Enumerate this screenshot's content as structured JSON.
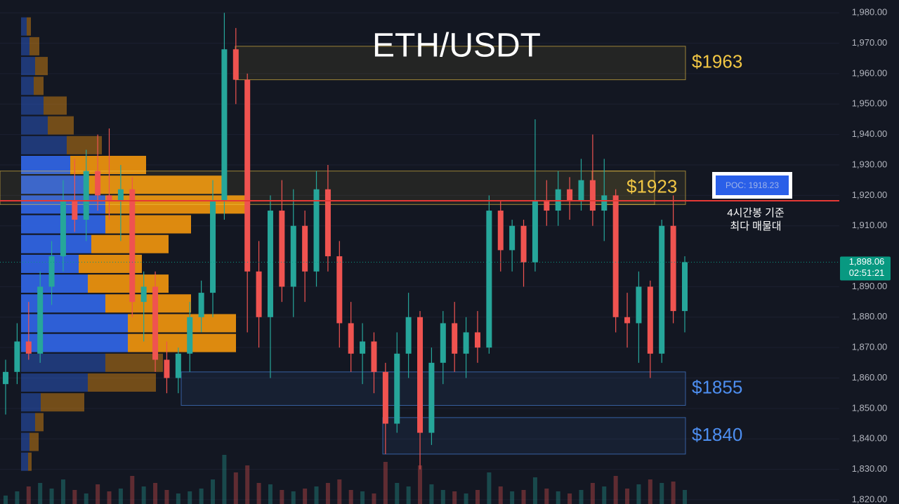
{
  "chart_data": {
    "type": "candlestick",
    "title": "ETH/USDT",
    "ylim": [
      1818.6,
      1984.2
    ],
    "yticks": [
      {
        "value": 1820,
        "label": "1,820.00"
      },
      {
        "value": 1830,
        "label": "1,830.00"
      },
      {
        "value": 1840,
        "label": "1,840.00"
      },
      {
        "value": 1850,
        "label": "1,850.00"
      },
      {
        "value": 1860,
        "label": "1,860.00"
      },
      {
        "value": 1870,
        "label": "1,870.00"
      },
      {
        "value": 1880,
        "label": "1,880.00"
      },
      {
        "value": 1890,
        "label": "1,890.00"
      },
      {
        "value": 1910,
        "label": "1,910.00"
      },
      {
        "value": 1920,
        "label": "1,920.00"
      },
      {
        "value": 1930,
        "label": "1,930.00"
      },
      {
        "value": 1940,
        "label": "1,940.00"
      },
      {
        "value": 1950,
        "label": "1,950.00"
      },
      {
        "value": 1960,
        "label": "1,960.00"
      },
      {
        "value": 1970,
        "label": "1,970.00"
      },
      {
        "value": 1980,
        "label": "1,980.00"
      }
    ],
    "up_color": "#26a69a",
    "down_color": "#ef5350",
    "candles": {
      "open": [
        1858,
        1862,
        1872,
        1868,
        1890,
        1900,
        1918,
        1912,
        1928,
        1920,
        1918,
        1922,
        1885,
        1890,
        1866,
        1860,
        1868,
        1880,
        1888,
        1918,
        1968,
        1958,
        1895,
        1880,
        1915,
        1890,
        1910,
        1895,
        1922,
        1900,
        1878,
        1868,
        1872,
        1862,
        1845,
        1868,
        1880,
        1842,
        1865,
        1878,
        1868,
        1875,
        1870,
        1915,
        1902,
        1910,
        1898,
        1918,
        1915,
        1922,
        1918,
        1925,
        1915,
        1920,
        1880,
        1878,
        1890,
        1868,
        1910,
        1882
      ],
      "high": [
        1866,
        1878,
        1885,
        1895,
        1905,
        1925,
        1932,
        1935,
        1940,
        1942,
        1930,
        1926,
        1895,
        1895,
        1872,
        1870,
        1885,
        1892,
        1925,
        1980,
        1975,
        1960,
        1905,
        1920,
        1925,
        1922,
        1915,
        1928,
        1930,
        1905,
        1885,
        1878,
        1875,
        1865,
        1875,
        1888,
        1882,
        1870,
        1882,
        1885,
        1880,
        1882,
        1920,
        1918,
        1912,
        1912,
        1945,
        1925,
        1928,
        1926,
        1932,
        1940,
        1932,
        1922,
        1888,
        1895,
        1892,
        1912,
        1920,
        1900
      ],
      "low": [
        1848,
        1858,
        1866,
        1865,
        1884,
        1895,
        1908,
        1905,
        1915,
        1912,
        1905,
        1880,
        1872,
        1862,
        1855,
        1855,
        1862,
        1875,
        1880,
        1912,
        1950,
        1875,
        1870,
        1860,
        1885,
        1880,
        1885,
        1890,
        1895,
        1870,
        1862,
        1858,
        1855,
        1835,
        1842,
        1860,
        1830,
        1838,
        1858,
        1862,
        1860,
        1865,
        1868,
        1895,
        1895,
        1890,
        1895,
        1910,
        1910,
        1912,
        1915,
        1910,
        1905,
        1875,
        1870,
        1865,
        1860,
        1865,
        1878,
        1875
      ],
      "close": [
        1862,
        1872,
        1868,
        1890,
        1900,
        1918,
        1912,
        1928,
        1920,
        1918,
        1922,
        1885,
        1890,
        1866,
        1860,
        1868,
        1880,
        1888,
        1918,
        1968,
        1958,
        1895,
        1880,
        1915,
        1890,
        1910,
        1895,
        1922,
        1900,
        1878,
        1868,
        1872,
        1862,
        1845,
        1868,
        1880,
        1842,
        1865,
        1878,
        1868,
        1875,
        1870,
        1915,
        1902,
        1910,
        1898,
        1918,
        1915,
        1922,
        1918,
        1925,
        1915,
        1920,
        1880,
        1878,
        1890,
        1868,
        1910,
        1882,
        1898.06
      ]
    },
    "volume": [
      12,
      18,
      25,
      30,
      22,
      35,
      20,
      15,
      28,
      18,
      22,
      40,
      25,
      30,
      20,
      15,
      18,
      22,
      35,
      70,
      45,
      55,
      30,
      28,
      20,
      18,
      22,
      25,
      30,
      35,
      20,
      18,
      15,
      60,
      30,
      25,
      55,
      28,
      20,
      18,
      15,
      20,
      45,
      25,
      18,
      20,
      38,
      22,
      18,
      15,
      20,
      30,
      25,
      40,
      22,
      28,
      35,
      30,
      32,
      20
    ],
    "profile": {
      "levels": [
        1975.5,
        1969,
        1962.5,
        1956,
        1949.5,
        1943,
        1936.5,
        1930,
        1923.5,
        1917,
        1910.5,
        1904,
        1897.5,
        1891,
        1884.5,
        1878,
        1871.5,
        1865,
        1858.5,
        1852,
        1845.5,
        1839,
        1832.5
      ],
      "buy": [
        8,
        12,
        20,
        18,
        32,
        38,
        65,
        70,
        90,
        120,
        120,
        100,
        82,
        95,
        120,
        152,
        152,
        120,
        95,
        28,
        20,
        12,
        10
      ],
      "sell": [
        6,
        14,
        18,
        14,
        33,
        37,
        50,
        108,
        202,
        200,
        122,
        110,
        90,
        115,
        122,
        154,
        154,
        82,
        97,
        62,
        12,
        13,
        5
      ],
      "buy_color": "#2f63e0",
      "sell_color": "#e8900f",
      "value_area": [
        1871,
        1931
      ]
    },
    "zones": [
      {
        "label": "$1963",
        "low": 1958,
        "high": 1969,
        "color": "#f2c744"
      },
      {
        "label": "$1923",
        "low": 1917,
        "high": 1928,
        "color": "#f2c744"
      },
      {
        "label": "$1855",
        "low": 1851,
        "high": 1862,
        "color": "#4d8ef0"
      },
      {
        "label": "$1840",
        "low": 1835,
        "high": 1847,
        "color": "#4d8ef0"
      }
    ],
    "poc": {
      "value": 1918.23,
      "label": "POC: 1918.23",
      "color": "#e53935"
    },
    "annotations": [
      "4시간봉 기준",
      "최다 매물대"
    ],
    "last_price": {
      "value": 1898.06,
      "label": "1,898.06",
      "countdown": "02:51:21",
      "color": "#089981"
    }
  }
}
